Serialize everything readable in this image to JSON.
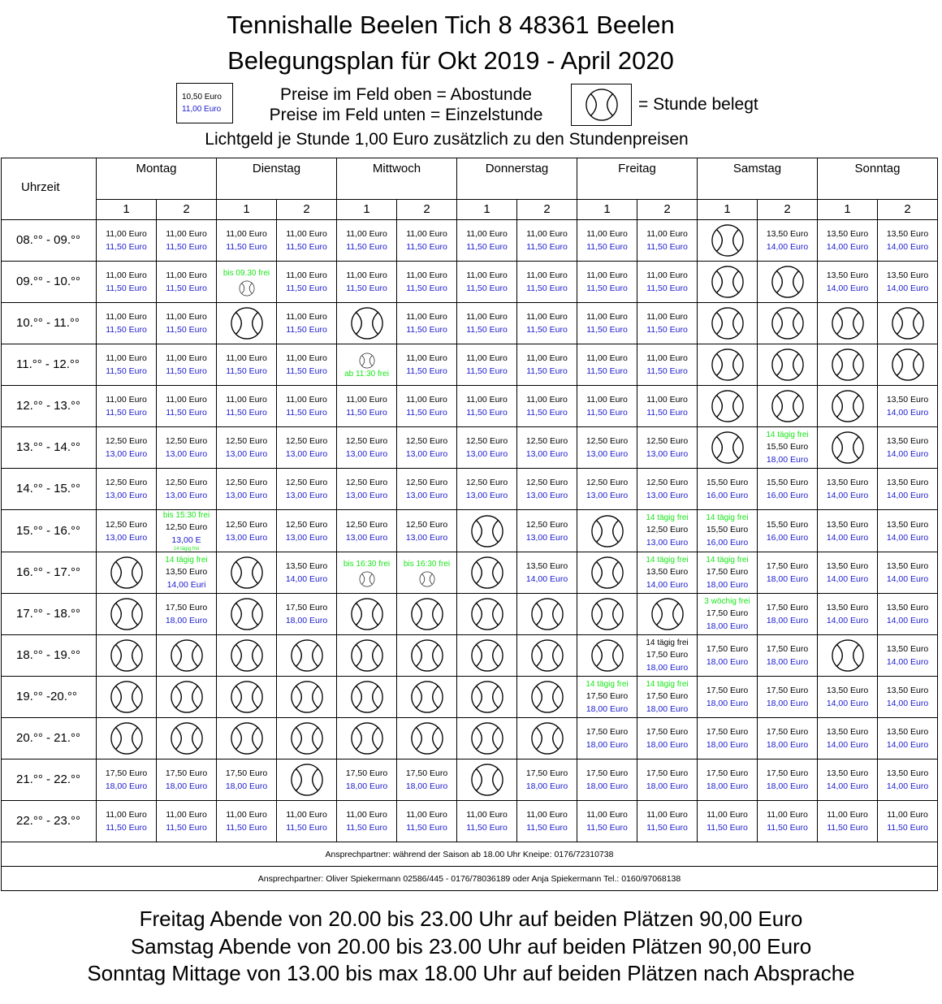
{
  "header": {
    "title_line1": "Tennishalle Beelen Tich 8 48361 Beelen",
    "title_line2": "Belegungsplan für Okt 2019 - April 2020",
    "legend_price_top": "10,50 Euro",
    "legend_price_bottom": "11,00 Euro",
    "legend_line1": "Preise im Feld oben = Abostunde",
    "legend_line2": "Preise im Feld unten = Einzelstunde",
    "legend_booked": "= Stunde belegt",
    "light_fee": "Lichtgeld je Stunde 1,00 Euro zusätzlich zu den Stundenpreisen"
  },
  "table": {
    "time_header": "Uhrzeit",
    "days": [
      "Montag",
      "Dienstag",
      "Mittwoch",
      "Donnerstag",
      "Freitag",
      "Samstag",
      "Sonntag"
    ],
    "courts": [
      "1",
      "2"
    ],
    "rows": [
      {
        "time": "08.°° - 09.°°",
        "cells": [
          [
            "11,00 Euro",
            "11,50 Euro"
          ],
          [
            "11,00 Euro",
            "11,50 Euro"
          ],
          [
            "11,00 Euro",
            "11,50 Euro"
          ],
          [
            "11,00 Euro",
            "11,50 Euro"
          ],
          [
            "11,00 Euro",
            "11,50 Euro"
          ],
          [
            "11,00 Euro",
            "11,50 Euro"
          ],
          [
            "11,00 Euro",
            "11,50 Euro"
          ],
          [
            "11,00 Euro",
            "11,50 Euro"
          ],
          [
            "11,00 Euro",
            "11,50 Euro"
          ],
          [
            "11,00 Euro",
            "11,50 Euro"
          ],
          "booked",
          [
            "13,50 Euro",
            "14,00 Euro"
          ],
          [
            "13,50 Euro",
            "14,00 Euro"
          ],
          [
            "13,50 Euro",
            "14,00 Euro"
          ]
        ]
      },
      {
        "time": "09.°° - 10.°°",
        "cells": [
          [
            "11,00 Euro",
            "11,50 Euro"
          ],
          [
            "11,00 Euro",
            "11,50 Euro"
          ],
          {
            "note": "bis 09.30 frei",
            "ball": "small"
          },
          [
            "11,00 Euro",
            "11,50 Euro"
          ],
          [
            "11,00 Euro",
            "11,50 Euro"
          ],
          [
            "11,00 Euro",
            "11,50 Euro"
          ],
          [
            "11,00 Euro",
            "11,50 Euro"
          ],
          [
            "11,00 Euro",
            "11,50 Euro"
          ],
          [
            "11,00 Euro",
            "11,50 Euro"
          ],
          [
            "11,00 Euro",
            "11,50 Euro"
          ],
          "booked",
          "booked",
          [
            "13,50 Euro",
            "14,00 Euro"
          ],
          [
            "13,50 Euro",
            "14,00 Euro"
          ]
        ]
      },
      {
        "time": "10.°° - 11.°°",
        "cells": [
          [
            "11,00 Euro",
            "11,50 Euro"
          ],
          [
            "11,00 Euro",
            "11,50 Euro"
          ],
          "booked",
          [
            "11,00 Euro",
            "11,50 Euro"
          ],
          "booked",
          [
            "11,00 Euro",
            "11,50 Euro"
          ],
          [
            "11,00 Euro",
            "11,50 Euro"
          ],
          [
            "11,00 Euro",
            "11,50 Euro"
          ],
          [
            "11,00 Euro",
            "11,50 Euro"
          ],
          [
            "11,00 Euro",
            "11,50 Euro"
          ],
          "booked",
          "booked",
          "booked",
          "booked"
        ]
      },
      {
        "time": "11.°° - 12.°°",
        "cells": [
          [
            "11,00 Euro",
            "11,50 Euro"
          ],
          [
            "11,00 Euro",
            "11,50 Euro"
          ],
          [
            "11,00 Euro",
            "11,50 Euro"
          ],
          [
            "11,00 Euro",
            "11,50 Euro"
          ],
          {
            "ball": "small",
            "note_after": "ab 11:30 frei"
          },
          [
            "11,00 Euro",
            "11,50 Euro"
          ],
          [
            "11,00 Euro",
            "11,50 Euro"
          ],
          [
            "11,00 Euro",
            "11,50 Euro"
          ],
          [
            "11,00 Euro",
            "11,50 Euro"
          ],
          [
            "11,00 Euro",
            "11,50 Euro"
          ],
          "booked",
          "booked",
          "booked",
          "booked"
        ]
      },
      {
        "time": "12.°° - 13.°°",
        "cells": [
          [
            "11,00 Euro",
            "11,50 Euro"
          ],
          [
            "11,00 Euro",
            "11,50 Euro"
          ],
          [
            "11,00 Euro",
            "11,50 Euro"
          ],
          [
            "11,00 Euro",
            "11,50 Euro"
          ],
          [
            "11,00 Euro",
            "11,50 Euro"
          ],
          [
            "11,00 Euro",
            "11,50 Euro"
          ],
          [
            "11,00 Euro",
            "11,50 Euro"
          ],
          [
            "11,00 Euro",
            "11,50 Euro"
          ],
          [
            "11,00 Euro",
            "11,50 Euro"
          ],
          [
            "11,00 Euro",
            "11,50 Euro"
          ],
          "booked",
          "booked",
          "booked",
          [
            "13,50 Euro",
            "14,00 Euro"
          ]
        ]
      },
      {
        "time": "13.°° - 14.°°",
        "cells": [
          [
            "12,50 Euro",
            "13,00 Euro"
          ],
          [
            "12,50 Euro",
            "13,00 Euro"
          ],
          [
            "12,50 Euro",
            "13,00 Euro"
          ],
          [
            "12,50 Euro",
            "13,00 Euro"
          ],
          [
            "12,50 Euro",
            "13,00 Euro"
          ],
          [
            "12,50 Euro",
            "13,00 Euro"
          ],
          [
            "12,50 Euro",
            "13,00 Euro"
          ],
          [
            "12,50 Euro",
            "13,00 Euro"
          ],
          [
            "12,50 Euro",
            "13,00 Euro"
          ],
          [
            "12,50 Euro",
            "13,00 Euro"
          ],
          "booked",
          {
            "note": "14 tägig frei",
            "prices": [
              "15,50 Euro",
              "18,00 Euro"
            ]
          },
          "booked",
          [
            "13,50 Euro",
            "14,00 Euro"
          ]
        ]
      },
      {
        "time": "14.°° - 15.°°",
        "cells": [
          [
            "12,50 Euro",
            "13,00 Euro"
          ],
          [
            "12,50 Euro",
            "13,00 Euro"
          ],
          [
            "12,50 Euro",
            "13,00 Euro"
          ],
          [
            "12,50 Euro",
            "13,00 Euro"
          ],
          [
            "12,50 Euro",
            "13,00 Euro"
          ],
          [
            "12,50 Euro",
            "13,00 Euro"
          ],
          [
            "12,50 Euro",
            "13,00 Euro"
          ],
          [
            "12,50 Euro",
            "13,00 Euro"
          ],
          [
            "12,50 Euro",
            "13,00 Euro"
          ],
          [
            "12,50 Euro",
            "13,00 Euro"
          ],
          [
            "15,50 Euro",
            "16,00 Euro"
          ],
          [
            "15,50 Euro",
            "16,00 Euro"
          ],
          [
            "13,50 Euro",
            "14,00 Euro"
          ],
          [
            "13,50 Euro",
            "14,00 Euro"
          ]
        ]
      },
      {
        "time": "15.°° - 16.°°",
        "cells": [
          [
            "12,50 Euro",
            "13,00 Euro"
          ],
          {
            "note": "bis 15:30 frei",
            "prices": [
              "12,50 Euro",
              "13,00 E"
            ],
            "tiny": "14 tägig frei"
          },
          [
            "12,50 Euro",
            "13,00 Euro"
          ],
          [
            "12,50 Euro",
            "13,00 Euro"
          ],
          [
            "12,50 Euro",
            "13,00 Euro"
          ],
          [
            "12,50 Euro",
            "13,00 Euro"
          ],
          "booked",
          [
            "12,50 Euro",
            "13,00 Euro"
          ],
          "booked",
          {
            "note": "14 tägig frei",
            "prices": [
              "12,50 Euro",
              "13,00 Euro"
            ]
          },
          {
            "note": "14 tägig frei",
            "prices": [
              "15,50 Euro",
              "16,00 Euro"
            ]
          },
          [
            "15,50 Euro",
            "16,00 Euro"
          ],
          [
            "13,50 Euro",
            "14,00 Euro"
          ],
          [
            "13,50 Euro",
            "14,00 Euro"
          ]
        ]
      },
      {
        "time": "16.°° - 17.°°",
        "cells": [
          "booked",
          {
            "note": "14 tägig frei",
            "prices": [
              "13,50 Euro",
              "14,00 Euri"
            ]
          },
          "booked",
          [
            "13,50 Euro",
            "14,00 Euro"
          ],
          {
            "note": "bis 16:30 frei",
            "ball": "small"
          },
          {
            "note": "bis 16:30 frei",
            "ball": "small"
          },
          "booked",
          [
            "13,50 Euro",
            "14,00 Euro"
          ],
          "booked",
          {
            "note": "14 tägig frei",
            "prices": [
              "13,50 Euro",
              "14,00 Euro"
            ]
          },
          {
            "note": "14 tägig frei",
            "prices": [
              "17,50 Euro",
              "18,00 Euro"
            ]
          },
          [
            "17,50 Euro",
            "18,00 Euro"
          ],
          [
            "13,50 Euro",
            "14,00 Euro"
          ],
          [
            "13,50 Euro",
            "14,00 Euro"
          ]
        ]
      },
      {
        "time": "17.°° - 18.°°",
        "cells": [
          "booked",
          [
            "17,50 Euro",
            "18,00 Euro"
          ],
          "booked",
          [
            "17,50 Euro",
            "18,00 Euro"
          ],
          "booked",
          "booked",
          "booked",
          "booked",
          "booked",
          "booked",
          {
            "note": "3 wöchig frei",
            "prices": [
              "17,50 Euro",
              "18,00 Euro"
            ]
          },
          [
            "17,50 Euro",
            "18,00 Euro"
          ],
          [
            "13,50 Euro",
            "14,00 Euro"
          ],
          [
            "13,50 Euro",
            "14,00 Euro"
          ]
        ]
      },
      {
        "time": "18.°° - 19.°°",
        "cells": [
          "booked",
          "booked",
          "booked",
          "booked",
          "booked",
          "booked",
          "booked",
          "booked",
          "booked",
          {
            "note_black": "14 tägig frei",
            "prices": [
              "17,50 Euro",
              "18,00 Euro"
            ]
          },
          [
            "17,50 Euro",
            "18,00 Euro"
          ],
          [
            "17,50 Euro",
            "18,00 Euro"
          ],
          "booked",
          [
            "13,50 Euro",
            "14,00 Euro"
          ]
        ]
      },
      {
        "time": "19.°° -20.°°",
        "cells": [
          "booked",
          "booked",
          "booked",
          "booked",
          "booked",
          "booked",
          "booked",
          "booked",
          {
            "note": "14 tägig frei",
            "prices": [
              "17,50 Euro",
              "18,00 Euro"
            ]
          },
          {
            "note": "14 tägig frei",
            "prices": [
              "17,50 Euro",
              "18,00 Euro"
            ]
          },
          [
            "17,50 Euro",
            "18,00 Euro"
          ],
          [
            "17,50 Euro",
            "18,00 Euro"
          ],
          [
            "13,50 Euro",
            "14,00 Euro"
          ],
          [
            "13,50 Euro",
            "14,00 Euro"
          ]
        ]
      },
      {
        "time": "20.°° - 21.°°",
        "cells": [
          "booked",
          "booked",
          "booked",
          "booked",
          "booked",
          "booked",
          "booked",
          "booked",
          [
            "17,50 Euro",
            "18,00  Euro"
          ],
          [
            "17,50 Euro",
            "18,00 Euro"
          ],
          [
            "17,50 Euro",
            "18,00 Euro"
          ],
          [
            "17,50 Euro",
            "18,00 Euro"
          ],
          [
            "13,50 Euro",
            "14,00 Euro"
          ],
          [
            "13,50 Euro",
            "14,00 Euro"
          ]
        ]
      },
      {
        "time": "21.°° - 22.°°",
        "cells": [
          [
            "17,50 Euro",
            "18,00 Euro"
          ],
          [
            "17,50 Euro",
            "18,00 Euro"
          ],
          [
            "17,50 Euro",
            "18,00 Euro"
          ],
          "booked",
          [
            "17,50 Euro",
            "18,00 Euro"
          ],
          [
            "17,50 Euro",
            "18,00 Euro"
          ],
          "booked",
          [
            "17,50 Euro",
            "18,00 Euro"
          ],
          [
            "17,50 Euro",
            "18,00 Euro"
          ],
          [
            "17,50 Euro",
            "18,00 Euro"
          ],
          [
            "17,50 Euro",
            "18,00 Euro"
          ],
          [
            "17,50 Euro",
            "18,00 Euro"
          ],
          [
            "13,50 Euro",
            "14,00 Euro"
          ],
          [
            "13,50 Euro",
            "14,00 Euro"
          ]
        ]
      },
      {
        "time": "22.°° - 23.°°",
        "cells": [
          [
            "11,00 Euro",
            "11,50 Euro"
          ],
          [
            "11,00 Euro",
            "11,50 Euro"
          ],
          [
            "11,00 Euro",
            "11,50 Euro"
          ],
          [
            "11,00 Euro",
            "11,50 Euro"
          ],
          [
            "11,00 Euro",
            "11,50 Euro"
          ],
          [
            "11,00 Euro",
            "11,50 Euro"
          ],
          [
            "11,00 Euro",
            "11,50 Euro"
          ],
          [
            "11,00 Euro",
            "11,50 Euro"
          ],
          [
            "11,00 Euro",
            "11,50 Euro"
          ],
          [
            "11,00 Euro",
            "11,50 Euro"
          ],
          [
            "11,00 Euro",
            "11,50 Euro"
          ],
          [
            "11,00 Euro",
            "11,50 Euro"
          ],
          [
            "11,00 Euro",
            "11,50 Euro"
          ],
          [
            "11,00 Euro",
            "11,50 Euro"
          ]
        ]
      }
    ],
    "contact_season": "Ansprechpartner: während der Saison ab 18.00 Uhr Kneipe: 0176/72310738",
    "contact_persons": "Ansprechpartner: Oliver Spiekermann 02586/445 - 0176/78036189 oder Anja Spiekermann Tel.: 0160/97068138"
  },
  "footer": {
    "line1": "Freitag Abende von 20.00 bis 23.00 Uhr auf beiden Plätzen 90,00 Euro",
    "line2": "Samstag Abende von 20.00 bis 23.00 Uhr auf beiden Plätzen 90,00 Euro",
    "line3": "Sonntag Mittage von 13.00 bis max 18.00 Uhr auf beiden Plätzen nach Absprache"
  },
  "colors": {
    "abo_price": "#000000",
    "single_price": "#1a1acd",
    "free_note": "#19e619"
  },
  "icons": {
    "booked": "tennis-ball-icon"
  }
}
